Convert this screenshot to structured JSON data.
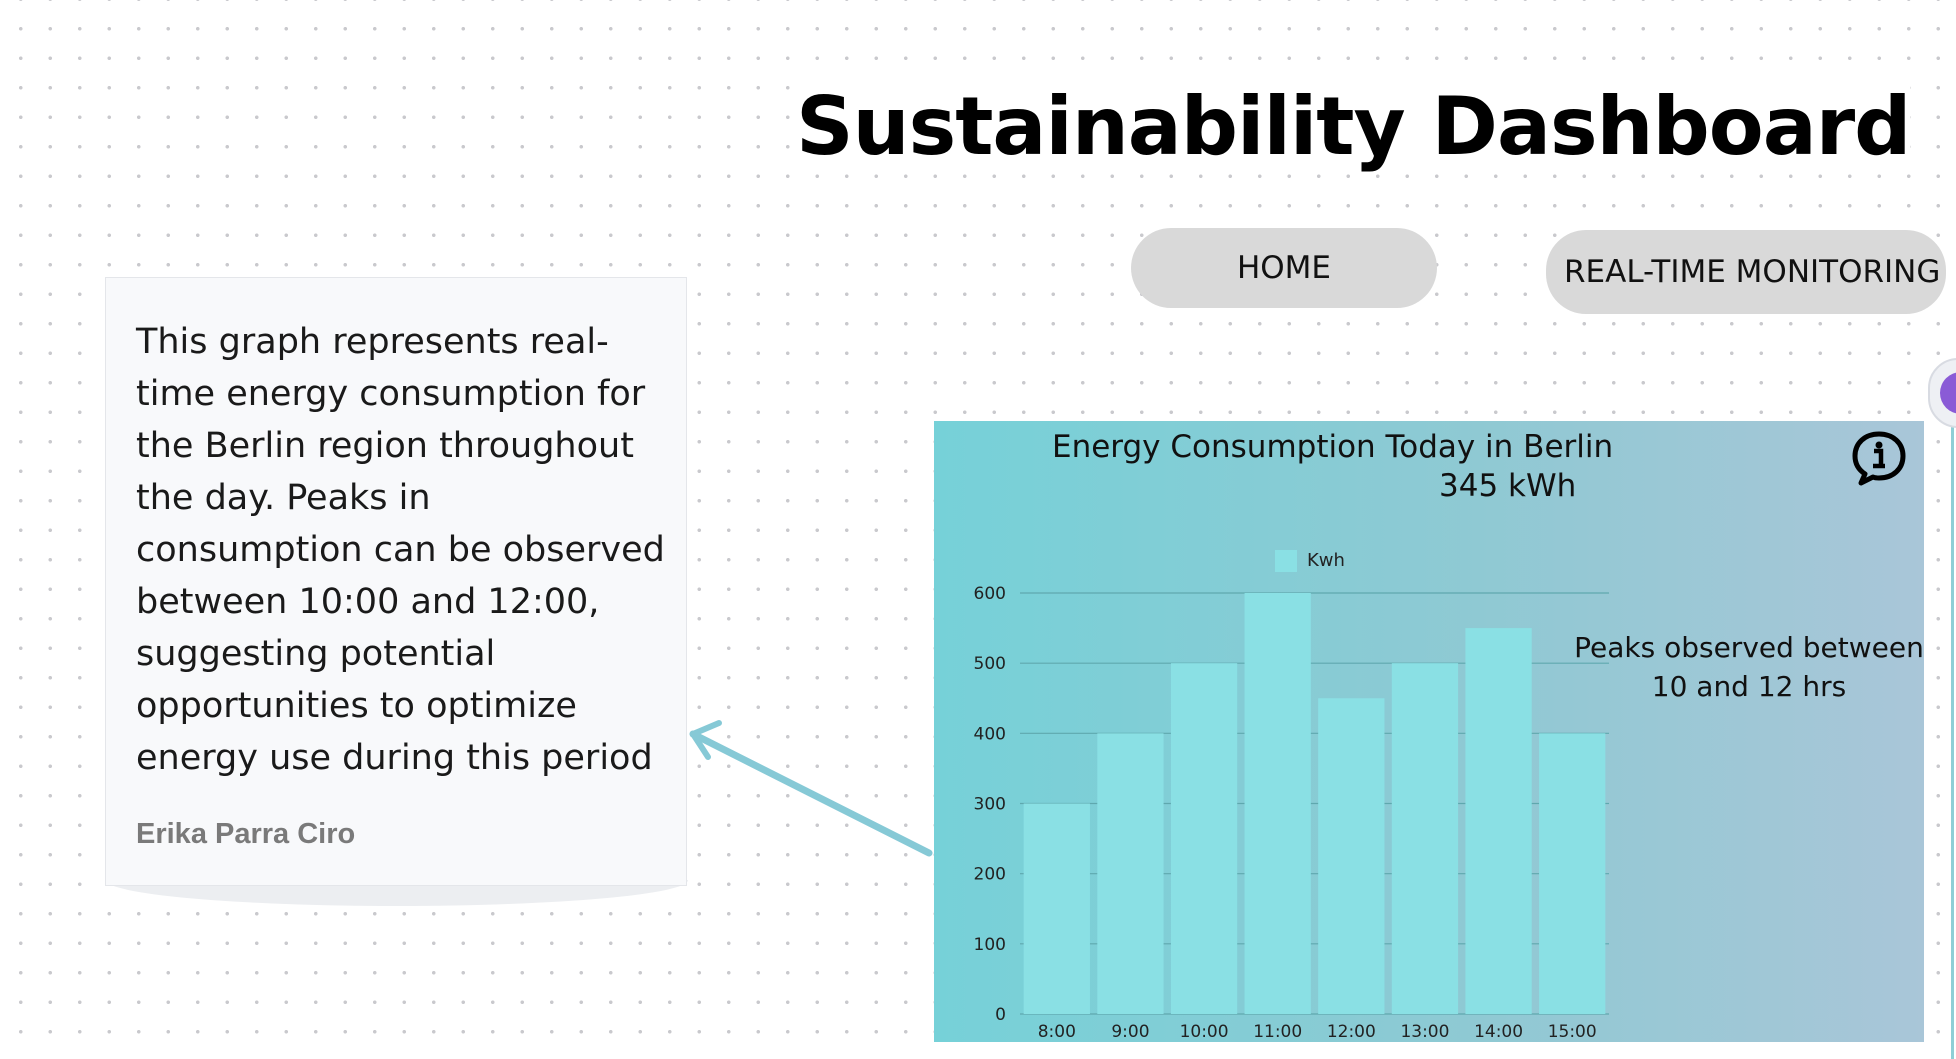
{
  "header": {
    "title": "Sustainability Dashboard"
  },
  "nav": {
    "home_label": "HOME",
    "realtime_label": "REAL-TIME MONITORING"
  },
  "note": {
    "text": "This graph represents real-time energy consumption for the Berlin region throughout the day. Peaks in consumption can be observed between 10:00 and 12:00, suggesting potential opportunities to optimize energy use during this period",
    "author": "Erika Parra Ciro"
  },
  "panel": {
    "title": "Energy Consumption Today in Berlin",
    "total": "345 kWh",
    "annotation": "Peaks observed between 10 and 12 hrs",
    "info_icon": "info-icon"
  },
  "colors": {
    "bar": "#8ae0e4",
    "panel_start": "#76d1d8",
    "panel_end": "#a9c6d8",
    "arrow": "#86c9d6",
    "avatar": "#8a5bd6"
  },
  "chart_data": {
    "type": "bar",
    "categories": [
      "8:00",
      "9:00",
      "10:00",
      "11:00",
      "12:00",
      "13:00",
      "14:00",
      "15:00"
    ],
    "series": [
      {
        "name": "Kwh",
        "values": [
          300,
          400,
          500,
          600,
          450,
          500,
          550,
          400
        ]
      }
    ],
    "yticks": [
      0,
      100,
      200,
      300,
      400,
      500,
      600
    ],
    "ylim": [
      0,
      600
    ],
    "grid": true,
    "legend_position": "top"
  }
}
